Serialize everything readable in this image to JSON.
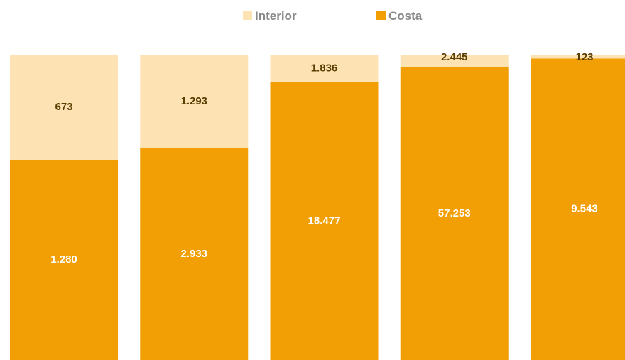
{
  "chart_data": {
    "type": "bar",
    "stacked": "percent",
    "categories": [
      "",
      "",
      "",
      "",
      ""
    ],
    "series": [
      {
        "name": "Costa",
        "values": [
          1280,
          2933,
          18477,
          57253,
          9543
        ],
        "labels": [
          "1.280",
          "2.933",
          "18.477",
          "57.253",
          "9.543"
        ],
        "color": "#f29f05"
      },
      {
        "name": "Interior",
        "values": [
          673,
          1293,
          1836,
          2445,
          123
        ],
        "labels": [
          "673",
          "1.293",
          "1.836",
          "2.445",
          "123"
        ],
        "color": "#fde3b4"
      }
    ],
    "legend": {
      "position": "top",
      "order": [
        "Interior",
        "Costa"
      ]
    },
    "ylim": [
      0,
      1
    ],
    "grid": false
  }
}
